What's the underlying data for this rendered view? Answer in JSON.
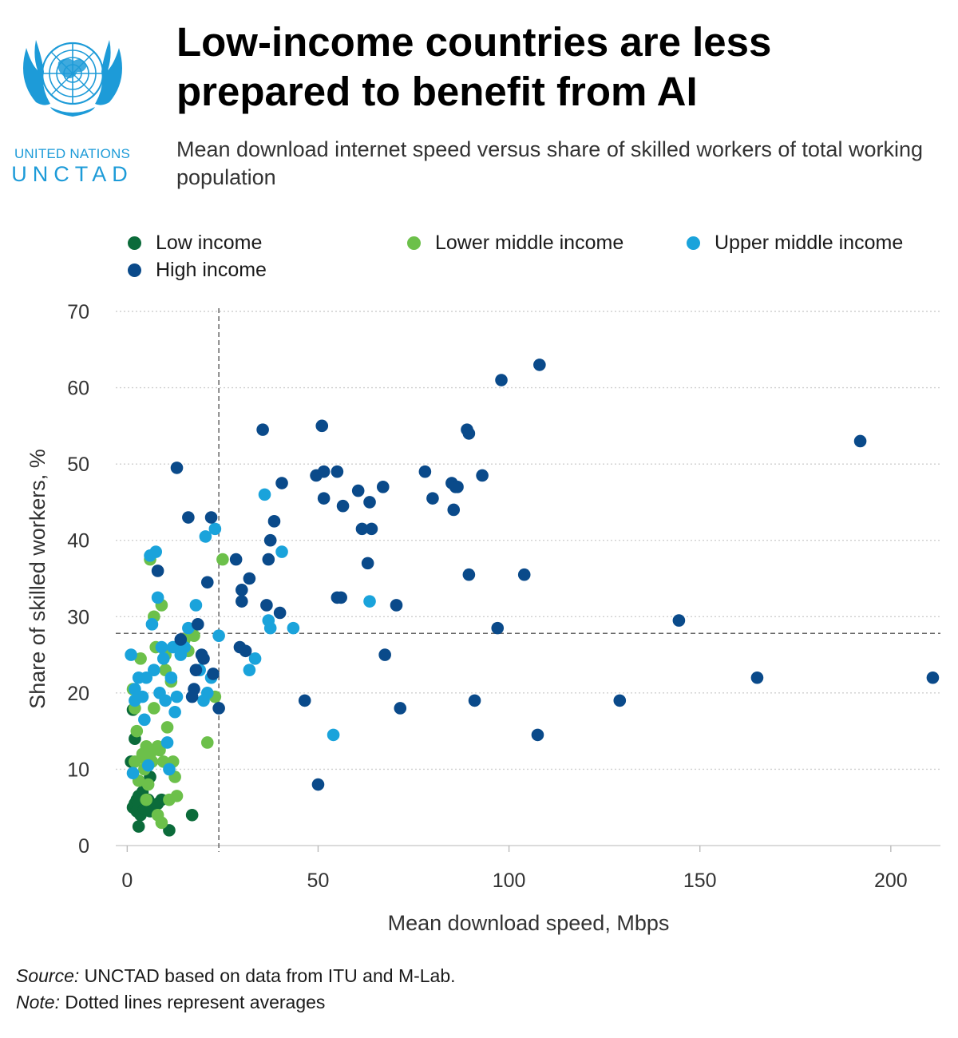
{
  "header": {
    "logo_line1": "UNITED NATIONS",
    "logo_line2": "UNCTAD",
    "title": "Low-income countries are less prepared to benefit from AI",
    "subtitle": "Mean download internet speed versus share of skilled workers of total working population"
  },
  "footer": {
    "source_label": "Source:",
    "source_text": "UNCTAD based on data from ITU and M-Lab.",
    "note_label": "Note:",
    "note_text": "Dotted lines represent averages"
  },
  "colors": {
    "Low income": "#0b6b3a",
    "Lower middle income": "#6cc04a",
    "Upper middle income": "#1aa3db",
    "High income": "#0a4a8a",
    "brand": "#1d9bd8"
  },
  "chart_data": {
    "type": "scatter",
    "title": "Low-income countries are less prepared to benefit from AI",
    "xlabel": "Mean download speed, Mbps",
    "ylabel": "Share of skilled workers, %",
    "xlim": [
      -3,
      213
    ],
    "ylim": [
      0,
      70
    ],
    "xticks": [
      0,
      50,
      100,
      150,
      200
    ],
    "yticks": [
      0,
      10,
      20,
      30,
      40,
      50,
      60,
      70
    ],
    "grid": "horizontal dotted",
    "legend": "top",
    "annotations": [
      {
        "type": "vline",
        "label": "Average download speed",
        "value": 24
      },
      {
        "type": "hline",
        "label": "Average share of skilled workers",
        "value": 27.8
      }
    ],
    "series": [
      {
        "name": "Low income",
        "points": [
          [
            1,
            11
          ],
          [
            1.5,
            5
          ],
          [
            2,
            5.5
          ],
          [
            2.5,
            4.5
          ],
          [
            3,
            5
          ],
          [
            3.5,
            4
          ],
          [
            4,
            5.5
          ],
          [
            4.5,
            4.8
          ],
          [
            5,
            5
          ],
          [
            5.5,
            6
          ],
          [
            6,
            4.5
          ],
          [
            7,
            5
          ],
          [
            3,
            6.5
          ],
          [
            2,
            14
          ],
          [
            1.5,
            17.8
          ],
          [
            3,
            2.5
          ],
          [
            11,
            2
          ],
          [
            17,
            4
          ],
          [
            6,
            9
          ],
          [
            9,
            6
          ],
          [
            4,
            7
          ],
          [
            8,
            5.5
          ],
          [
            2.5,
            6
          ]
        ]
      },
      {
        "name": "Lower middle income",
        "points": [
          [
            1.5,
            20.5
          ],
          [
            2,
            18
          ],
          [
            2.5,
            15
          ],
          [
            3.5,
            24.5
          ],
          [
            4,
            12
          ],
          [
            4.5,
            10
          ],
          [
            5,
            6
          ],
          [
            5.5,
            8
          ],
          [
            6,
            37.5
          ],
          [
            6.5,
            11
          ],
          [
            7,
            30
          ],
          [
            7.5,
            26
          ],
          [
            8,
            13
          ],
          [
            8.5,
            12.5
          ],
          [
            9,
            31.5
          ],
          [
            9.5,
            11
          ],
          [
            10,
            25
          ],
          [
            10.5,
            15.5
          ],
          [
            11,
            6
          ],
          [
            11.5,
            21.5
          ],
          [
            12,
            11
          ],
          [
            12.5,
            9
          ],
          [
            13,
            6.5
          ],
          [
            15,
            27
          ],
          [
            16,
            25.5
          ],
          [
            17.5,
            27.5
          ],
          [
            21,
            13.5
          ],
          [
            23,
            19.5
          ],
          [
            25,
            37.5
          ],
          [
            4,
            11.5
          ],
          [
            6,
            12
          ],
          [
            7,
            18
          ],
          [
            8,
            4
          ],
          [
            9,
            3
          ],
          [
            10,
            23
          ],
          [
            3,
            8.5
          ],
          [
            5,
            13
          ],
          [
            2,
            11
          ]
        ]
      },
      {
        "name": "Upper middle income",
        "points": [
          [
            1,
            25
          ],
          [
            1.5,
            9.5
          ],
          [
            2,
            19
          ],
          [
            3,
            22
          ],
          [
            4,
            19.5
          ],
          [
            4.5,
            16.5
          ],
          [
            5,
            22
          ],
          [
            5.5,
            10.5
          ],
          [
            6,
            38
          ],
          [
            6.5,
            29
          ],
          [
            7,
            23
          ],
          [
            7.5,
            38.5
          ],
          [
            8,
            32.5
          ],
          [
            8.5,
            20
          ],
          [
            9,
            26
          ],
          [
            9.5,
            24.5
          ],
          [
            10,
            19
          ],
          [
            10.5,
            13.5
          ],
          [
            11,
            10
          ],
          [
            11.5,
            22
          ],
          [
            12,
            26
          ],
          [
            12.5,
            17.5
          ],
          [
            13,
            19.5
          ],
          [
            14,
            25
          ],
          [
            15,
            26
          ],
          [
            16,
            28.5
          ],
          [
            18,
            31.5
          ],
          [
            19,
            23
          ],
          [
            20,
            19
          ],
          [
            20.5,
            40.5
          ],
          [
            21,
            20
          ],
          [
            22,
            22
          ],
          [
            23,
            41.5
          ],
          [
            24,
            27.5
          ],
          [
            32,
            23
          ],
          [
            33.5,
            24.5
          ],
          [
            36,
            46
          ],
          [
            37,
            29.5
          ],
          [
            37.5,
            28.5
          ],
          [
            40.5,
            38.5
          ],
          [
            43.5,
            28.5
          ],
          [
            54,
            14.5
          ],
          [
            63.5,
            32
          ],
          [
            2,
            20.5
          ]
        ]
      },
      {
        "name": "High income",
        "points": [
          [
            8,
            36
          ],
          [
            13,
            49.5
          ],
          [
            14,
            27
          ],
          [
            16,
            43
          ],
          [
            17,
            19.5
          ],
          [
            17.5,
            20.5
          ],
          [
            18,
            23
          ],
          [
            18.5,
            29
          ],
          [
            19.5,
            25
          ],
          [
            20,
            24.5
          ],
          [
            21,
            34.5
          ],
          [
            22,
            43
          ],
          [
            22.5,
            22.5
          ],
          [
            24,
            18
          ],
          [
            28.5,
            37.5
          ],
          [
            29.5,
            26
          ],
          [
            30,
            33.5
          ],
          [
            30,
            32
          ],
          [
            31,
            25.5
          ],
          [
            32,
            35
          ],
          [
            35.5,
            54.5
          ],
          [
            36.5,
            31.5
          ],
          [
            37,
            37.5
          ],
          [
            37.5,
            40
          ],
          [
            38.5,
            42.5
          ],
          [
            40,
            30.5
          ],
          [
            40.5,
            47.5
          ],
          [
            46.5,
            19
          ],
          [
            49.5,
            48.5
          ],
          [
            50,
            8
          ],
          [
            51,
            55
          ],
          [
            51.5,
            49
          ],
          [
            51.5,
            45.5
          ],
          [
            55,
            49
          ],
          [
            55,
            32.5
          ],
          [
            56,
            32.5
          ],
          [
            56.5,
            44.5
          ],
          [
            60.5,
            46.5
          ],
          [
            61.5,
            41.5
          ],
          [
            63,
            37
          ],
          [
            63.5,
            45
          ],
          [
            64,
            41.5
          ],
          [
            67,
            47
          ],
          [
            67.5,
            25
          ],
          [
            70.5,
            31.5
          ],
          [
            71.5,
            18
          ],
          [
            78,
            49
          ],
          [
            80,
            45.5
          ],
          [
            85,
            47.5
          ],
          [
            85.5,
            44
          ],
          [
            86,
            47
          ],
          [
            86.5,
            47
          ],
          [
            89,
            54.5
          ],
          [
            89.5,
            54
          ],
          [
            89.5,
            35.5
          ],
          [
            91,
            19
          ],
          [
            93,
            48.5
          ],
          [
            97,
            28.5
          ],
          [
            98,
            61
          ],
          [
            107.5,
            14.5
          ],
          [
            108,
            63
          ],
          [
            104,
            35.5
          ],
          [
            129,
            19
          ],
          [
            144.5,
            29.5
          ],
          [
            165,
            22
          ],
          [
            192,
            53
          ],
          [
            211,
            22
          ]
        ]
      }
    ]
  }
}
